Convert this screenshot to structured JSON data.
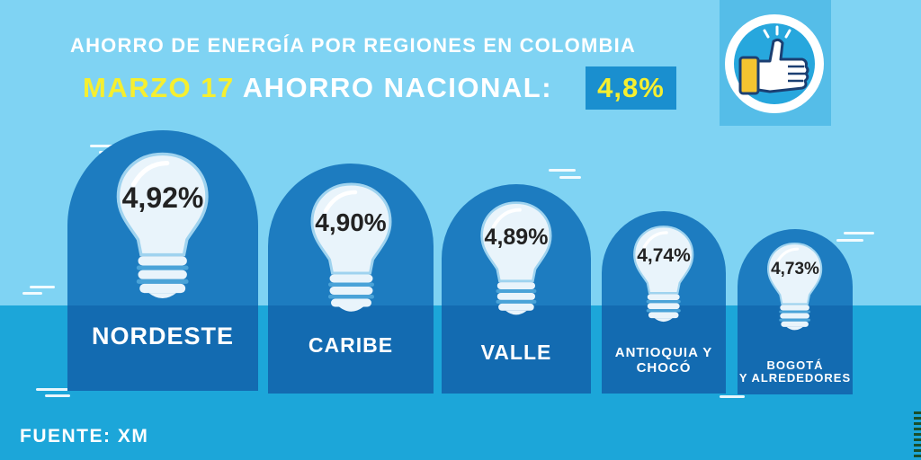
{
  "header": {
    "title": "AHORRO DE ENERGÍA POR REGIONES EN COLOMBIA",
    "date_label": "MARZO 17",
    "national_label": "AHORRO NACIONAL:",
    "national_value": "4,8%"
  },
  "badge": {
    "icon": "thumbs-up-icon"
  },
  "regions": [
    {
      "name": "NORDESTE",
      "value_label": "4,92%"
    },
    {
      "name": "CARIBE",
      "value_label": "4,90%"
    },
    {
      "name": "VALLE",
      "value_label": "4,89%"
    },
    {
      "name": "ANTIOQUIA Y\nCHOCÓ",
      "value_label": "4,74%"
    },
    {
      "name": "BOGOTÁ\nY ALREDEDORES",
      "value_label": "4,73%"
    }
  ],
  "footer": {
    "source": "FUENTE: XM"
  },
  "colors": {
    "background": "#7fd3f3",
    "sea": "#1ca6d9",
    "card": "#1d7cc0",
    "card_lower": "#136bb1",
    "highlight": "#f6ef2f"
  },
  "chart_data": {
    "type": "bar",
    "title": "AHORRO DE ENERGÍA POR REGIONES EN COLOMBIA",
    "subtitle": "MARZO 17 AHORRO NACIONAL: 4,8%",
    "categories": [
      "NORDESTE",
      "CARIBE",
      "VALLE",
      "ANTIOQUIA Y CHOCÓ",
      "BOGOTÁ Y ALREDEDORES"
    ],
    "values": [
      4.92,
      4.9,
      4.89,
      4.74,
      4.73
    ],
    "unit": "%",
    "national_value": 4.8
  }
}
